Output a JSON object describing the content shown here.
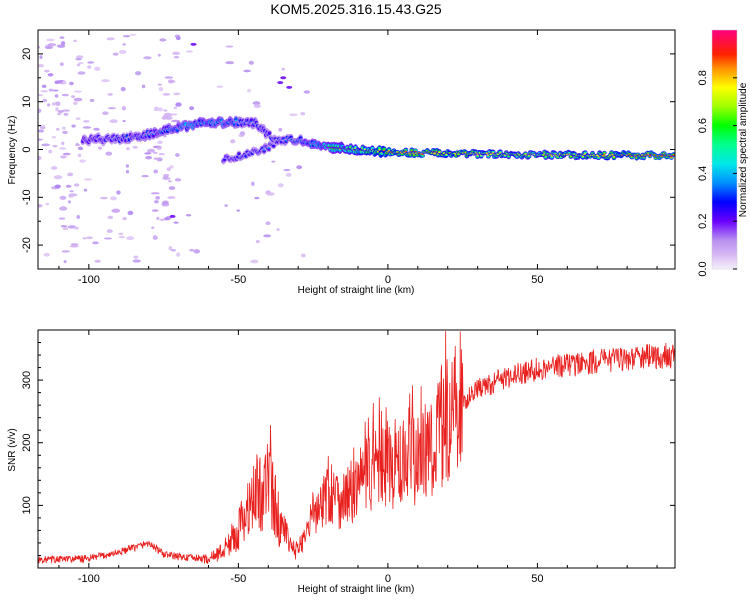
{
  "figure_title": "KOM5.2025.316.15.43.G25",
  "chart_data": [
    {
      "type": "heatmap",
      "title": "KOM5.2025.316.15.43.G25",
      "xlabel": "Height of straight line (km)",
      "ylabel": "Frequency (Hz)",
      "xlim": [
        -117,
        96
      ],
      "ylim": [
        -25,
        25
      ],
      "x_ticks": [
        -100,
        -50,
        0,
        50
      ],
      "x_tick_labels": [
        "-100",
        "-50",
        "0",
        "50"
      ],
      "y_ticks": [
        -20,
        -10,
        0,
        10,
        20
      ],
      "y_tick_labels": [
        "-20",
        "-10",
        "0",
        "10",
        "20"
      ],
      "ridge": {
        "description": "frequency trace of strongest spectral amplitude along height",
        "points": [
          [
            -100,
            2
          ],
          [
            -85,
            2.5
          ],
          [
            -75,
            4
          ],
          [
            -62,
            5.5
          ],
          [
            -52,
            5.8
          ],
          [
            -44,
            5.5
          ],
          [
            -38,
            2
          ],
          [
            -30,
            2
          ],
          [
            -20,
            0.5
          ],
          [
            -10,
            0
          ],
          [
            0,
            -0.5
          ],
          [
            10,
            -0.7
          ],
          [
            30,
            -0.9
          ],
          [
            50,
            -1.1
          ],
          [
            70,
            -1.2
          ],
          [
            95,
            -1.3
          ]
        ],
        "amplitude": [
          0.25,
          0.35,
          0.4,
          0.45,
          0.42,
          0.3,
          0.3,
          0.4,
          0.55,
          0.7,
          0.82,
          0.85,
          0.75,
          0.72,
          0.78,
          0.9
        ]
      },
      "branch": {
        "points": [
          [
            -55,
            -2
          ],
          [
            -48,
            -1.2
          ],
          [
            -42,
            0
          ],
          [
            -38,
            1
          ]
        ],
        "amplitude": [
          0.25,
          0.3,
          0.3,
          0.3
        ]
      },
      "colorbar": {
        "label": "Normalized spectral amplitude",
        "range": [
          0,
          1
        ],
        "ticks": [
          "0.0",
          "0.2",
          "0.4",
          "0.6",
          "0.8"
        ]
      }
    },
    {
      "type": "line",
      "xlabel": "Height of straight line (km)",
      "ylabel": "SNR (v/v)",
      "xlim": [
        -117,
        96
      ],
      "ylim": [
        0,
        380
      ],
      "x_ticks": [
        -100,
        -50,
        0,
        50
      ],
      "x_tick_labels": [
        "-100",
        "-50",
        "0",
        "50"
      ],
      "y_ticks": [
        100,
        200,
        300
      ],
      "y_tick_labels": [
        "100",
        "200",
        "300"
      ],
      "series": [
        {
          "name": "SNR",
          "color": "#e8201e",
          "baseline": [
            [
              -117,
              13
            ],
            [
              -100,
              15
            ],
            [
              -90,
              25
            ],
            [
              -80,
              40
            ],
            [
              -75,
              22
            ],
            [
              -70,
              18
            ],
            [
              -60,
              14
            ],
            [
              -55,
              28
            ],
            [
              -50,
              60
            ],
            [
              -45,
              110
            ],
            [
              -40,
              140
            ],
            [
              -36,
              70
            ],
            [
              -32,
              28
            ],
            [
              -30,
              30
            ],
            [
              -25,
              80
            ],
            [
              -20,
              120
            ],
            [
              -15,
              110
            ],
            [
              -10,
              130
            ],
            [
              -5,
              160
            ],
            [
              0,
              170
            ],
            [
              5,
              160
            ],
            [
              10,
              175
            ],
            [
              15,
              200
            ],
            [
              20,
              240
            ],
            [
              25,
              265
            ],
            [
              30,
              285
            ],
            [
              40,
              305
            ],
            [
              50,
              318
            ],
            [
              60,
              325
            ],
            [
              70,
              330
            ],
            [
              80,
              335
            ],
            [
              96,
              340
            ]
          ]
        }
      ]
    }
  ]
}
